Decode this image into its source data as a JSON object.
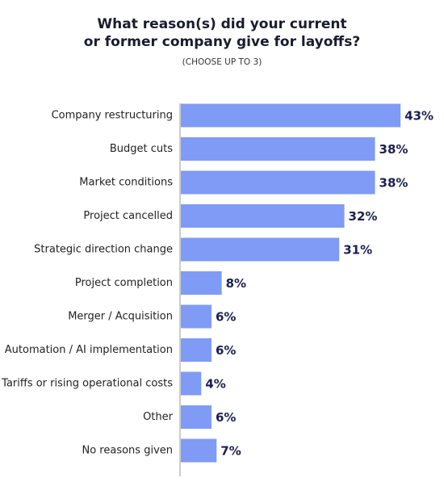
{
  "chart_data": {
    "type": "bar",
    "orientation": "horizontal",
    "title": [
      "What reason(s) did your current",
      "or former company give for layoffs?"
    ],
    "subtitle": "(CHOOSE UP TO 3)",
    "categories": [
      "Company restructuring",
      "Budget cuts",
      "Market conditions",
      "Project cancelled",
      "Strategic direction change",
      "Project completion",
      "Merger / Acquisition",
      "Automation / AI implementation",
      "Tariffs or rising operational costs",
      "Other",
      "No reasons given"
    ],
    "values": [
      43,
      38,
      38,
      32,
      31,
      8,
      6,
      6,
      4,
      6,
      7
    ],
    "value_labels": [
      "43%",
      "38%",
      "38%",
      "32%",
      "31%",
      "8%",
      "6%",
      "6%",
      "4%",
      "6%",
      "7%"
    ],
    "color": "#7f9bf6"
  }
}
